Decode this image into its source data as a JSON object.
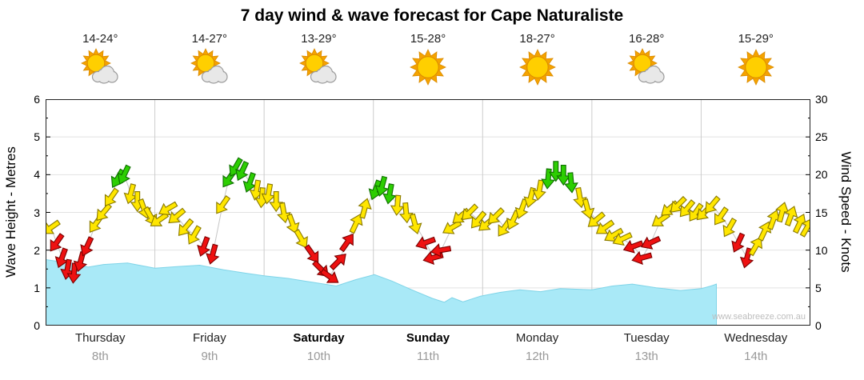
{
  "title": "7 day wind & wave forecast for Cape Naturaliste",
  "watermark": "www.seabreeze.com.au",
  "axes": {
    "left": {
      "label": "Wave Height - Metres",
      "ticks": [
        0,
        1,
        2,
        3,
        4,
        5,
        6
      ]
    },
    "right": {
      "label": "Wind Speed - Knots",
      "ticks": [
        0,
        5,
        10,
        15,
        20,
        25,
        30
      ]
    }
  },
  "days": [
    {
      "name": "Thursday",
      "date": "8th",
      "temp": "14-24°",
      "icon": "partly-cloudy",
      "weekend": false
    },
    {
      "name": "Friday",
      "date": "9th",
      "temp": "14-27°",
      "icon": "partly-cloudy",
      "weekend": false
    },
    {
      "name": "Saturday",
      "date": "10th",
      "temp": "13-29°",
      "icon": "partly-cloudy",
      "weekend": true
    },
    {
      "name": "Sunday",
      "date": "11th",
      "temp": "15-28°",
      "icon": "sunny",
      "weekend": true
    },
    {
      "name": "Monday",
      "date": "12th",
      "temp": "18-27°",
      "icon": "sunny",
      "weekend": false
    },
    {
      "name": "Tuesday",
      "date": "13th",
      "temp": "16-28°",
      "icon": "partly-cloudy",
      "weekend": false
    },
    {
      "name": "Wednesday",
      "date": "14th",
      "temp": "15-29°",
      "icon": "sunny",
      "weekend": false
    }
  ],
  "colors": {
    "wave_fill": "#a9e9f7",
    "wave_edge": "#7fd4e8",
    "trend_line": "#c6c6c6",
    "grid_vertical": "#cccccc",
    "grid_horizontal": "#e2e2e2",
    "plot_border": "#222222",
    "sun_ray": "#f5a300",
    "sun_core": "#ffcf00",
    "sun_edge": "#d98a00",
    "cloud_fill": "#e8e8e8",
    "cloud_edge": "#9a9a9a",
    "arrows": {
      "red": {
        "fill": "#ee1111",
        "stroke": "#7a0000"
      },
      "yellow": {
        "fill": "#ffe600",
        "stroke": "#8a7a00"
      },
      "green": {
        "fill": "#2dce02",
        "stroke": "#0e6e00"
      }
    }
  },
  "chart_data": {
    "type": "area",
    "title": "7 day wind & wave forecast for Cape Naturaliste",
    "x_axis_days": [
      "Thursday 8th",
      "Friday 9th",
      "Saturday 10th",
      "Sunday 11th",
      "Monday 12th",
      "Tuesday 13th",
      "Wednesday 14th"
    ],
    "ylabel_left": "Wave Height - Metres",
    "ylabel_right": "Wind Speed - Knots",
    "ylim_left": [
      0,
      6
    ],
    "ylim_right": [
      0,
      30
    ],
    "grid": true,
    "legend": false,
    "wave_height": {
      "units": "metres",
      "columns": [
        "day_x",
        "metres"
      ],
      "rows": [
        [
          0.0,
          1.75
        ],
        [
          0.24,
          1.65
        ],
        [
          0.39,
          1.55
        ],
        [
          0.53,
          1.62
        ],
        [
          0.75,
          1.66
        ],
        [
          1.0,
          1.52
        ],
        [
          1.19,
          1.56
        ],
        [
          1.41,
          1.6
        ],
        [
          1.63,
          1.48
        ],
        [
          1.85,
          1.38
        ],
        [
          2.0,
          1.32
        ],
        [
          2.22,
          1.25
        ],
        [
          2.44,
          1.15
        ],
        [
          2.66,
          1.05
        ],
        [
          2.84,
          1.22
        ],
        [
          3.01,
          1.35
        ],
        [
          3.17,
          1.18
        ],
        [
          3.35,
          0.95
        ],
        [
          3.54,
          0.72
        ],
        [
          3.65,
          0.62
        ],
        [
          3.72,
          0.74
        ],
        [
          3.82,
          0.63
        ],
        [
          3.98,
          0.78
        ],
        [
          4.16,
          0.88
        ],
        [
          4.34,
          0.95
        ],
        [
          4.53,
          0.9
        ],
        [
          4.71,
          0.98
        ],
        [
          5.0,
          0.95
        ],
        [
          5.19,
          1.05
        ],
        [
          5.37,
          1.1
        ],
        [
          5.59,
          1.0
        ],
        [
          5.81,
          0.93
        ],
        [
          6.0,
          0.98
        ],
        [
          6.08,
          1.04
        ],
        [
          6.14,
          1.1
        ],
        [
          6.14,
          0.0
        ],
        [
          7.0,
          0.0
        ]
      ]
    },
    "wind_arrows": {
      "units": "knots",
      "columns": [
        "day_x",
        "knots",
        "direction_deg",
        "color"
      ],
      "rows": [
        [
          0.05,
          13.0,
          235,
          "yellow"
        ],
        [
          0.1,
          11.0,
          215,
          "red"
        ],
        [
          0.15,
          9.0,
          200,
          "red"
        ],
        [
          0.2,
          7.5,
          190,
          "red"
        ],
        [
          0.26,
          7.0,
          185,
          "red"
        ],
        [
          0.32,
          8.5,
          195,
          "red"
        ],
        [
          0.38,
          10.5,
          205,
          "red"
        ],
        [
          0.46,
          13.5,
          215,
          "yellow"
        ],
        [
          0.53,
          15.0,
          220,
          "yellow"
        ],
        [
          0.6,
          17.0,
          215,
          "yellow"
        ],
        [
          0.66,
          19.5,
          210,
          "green"
        ],
        [
          0.72,
          20.0,
          205,
          "green"
        ],
        [
          0.78,
          17.5,
          195,
          "yellow"
        ],
        [
          0.84,
          16.5,
          180,
          "yellow"
        ],
        [
          0.9,
          15.5,
          160,
          "yellow"
        ],
        [
          0.96,
          14.5,
          150,
          "yellow"
        ],
        [
          1.04,
          14.0,
          235,
          "yellow"
        ],
        [
          1.12,
          15.5,
          240,
          "yellow"
        ],
        [
          1.2,
          14.5,
          230,
          "yellow"
        ],
        [
          1.28,
          13.0,
          220,
          "yellow"
        ],
        [
          1.36,
          12.0,
          210,
          "yellow"
        ],
        [
          1.45,
          10.5,
          200,
          "red"
        ],
        [
          1.53,
          9.5,
          195,
          "red"
        ],
        [
          1.62,
          16.0,
          215,
          "yellow"
        ],
        [
          1.68,
          19.5,
          215,
          "green"
        ],
        [
          1.74,
          21.0,
          210,
          "green"
        ],
        [
          1.8,
          20.5,
          205,
          "green"
        ],
        [
          1.87,
          19.0,
          200,
          "green"
        ],
        [
          1.93,
          18.0,
          190,
          "yellow"
        ],
        [
          1.98,
          17.0,
          185,
          "yellow"
        ],
        [
          2.04,
          17.5,
          190,
          "yellow"
        ],
        [
          2.11,
          16.5,
          180,
          "yellow"
        ],
        [
          2.18,
          15.0,
          170,
          "yellow"
        ],
        [
          2.26,
          13.5,
          160,
          "yellow"
        ],
        [
          2.34,
          11.5,
          150,
          "yellow"
        ],
        [
          2.44,
          9.5,
          145,
          "red"
        ],
        [
          2.52,
          7.5,
          135,
          "red"
        ],
        [
          2.6,
          6.5,
          125,
          "red"
        ],
        [
          2.68,
          8.5,
          45,
          "red"
        ],
        [
          2.76,
          11.0,
          35,
          "red"
        ],
        [
          2.84,
          13.5,
          25,
          "yellow"
        ],
        [
          2.92,
          15.5,
          15,
          "yellow"
        ],
        [
          3.02,
          18.0,
          200,
          "green"
        ],
        [
          3.08,
          18.5,
          195,
          "green"
        ],
        [
          3.15,
          17.5,
          190,
          "green"
        ],
        [
          3.22,
          16.0,
          185,
          "yellow"
        ],
        [
          3.3,
          15.0,
          175,
          "yellow"
        ],
        [
          3.38,
          13.5,
          165,
          "yellow"
        ],
        [
          3.48,
          11.0,
          250,
          "red"
        ],
        [
          3.55,
          9.0,
          255,
          "red"
        ],
        [
          3.62,
          10.0,
          260,
          "red"
        ],
        [
          3.72,
          13.0,
          240,
          "yellow"
        ],
        [
          3.8,
          14.5,
          230,
          "yellow"
        ],
        [
          3.88,
          15.0,
          225,
          "yellow"
        ],
        [
          3.96,
          14.0,
          220,
          "yellow"
        ],
        [
          4.04,
          13.5,
          230,
          "yellow"
        ],
        [
          4.12,
          14.5,
          225,
          "yellow"
        ],
        [
          4.2,
          13.0,
          215,
          "yellow"
        ],
        [
          4.28,
          14.0,
          205,
          "yellow"
        ],
        [
          4.36,
          15.5,
          200,
          "yellow"
        ],
        [
          4.44,
          17.0,
          195,
          "yellow"
        ],
        [
          4.52,
          18.0,
          190,
          "yellow"
        ],
        [
          4.6,
          19.5,
          185,
          "green"
        ],
        [
          4.67,
          20.5,
          180,
          "green"
        ],
        [
          4.74,
          20.0,
          180,
          "green"
        ],
        [
          4.81,
          19.0,
          175,
          "green"
        ],
        [
          4.89,
          17.0,
          170,
          "yellow"
        ],
        [
          4.96,
          15.5,
          165,
          "yellow"
        ],
        [
          5.04,
          14.0,
          230,
          "yellow"
        ],
        [
          5.12,
          13.0,
          235,
          "yellow"
        ],
        [
          5.2,
          12.0,
          240,
          "yellow"
        ],
        [
          5.28,
          11.5,
          245,
          "yellow"
        ],
        [
          5.38,
          10.5,
          250,
          "red"
        ],
        [
          5.46,
          9.0,
          255,
          "red"
        ],
        [
          5.54,
          11.0,
          245,
          "red"
        ],
        [
          5.63,
          14.0,
          235,
          "yellow"
        ],
        [
          5.71,
          15.5,
          230,
          "yellow"
        ],
        [
          5.79,
          16.0,
          225,
          "yellow"
        ],
        [
          5.87,
          15.5,
          220,
          "yellow"
        ],
        [
          5.95,
          15.0,
          215,
          "yellow"
        ],
        [
          6.03,
          15.0,
          225,
          "yellow"
        ],
        [
          6.1,
          16.0,
          220,
          "yellow"
        ],
        [
          6.18,
          14.5,
          215,
          "yellow"
        ],
        [
          6.26,
          13.0,
          210,
          "yellow"
        ],
        [
          6.34,
          11.0,
          205,
          "red"
        ],
        [
          6.42,
          9.0,
          195,
          "red"
        ],
        [
          6.5,
          10.5,
          30,
          "yellow"
        ],
        [
          6.58,
          12.5,
          25,
          "yellow"
        ],
        [
          6.66,
          14.0,
          20,
          "yellow"
        ],
        [
          6.74,
          15.0,
          15,
          "yellow"
        ],
        [
          6.82,
          14.5,
          20,
          "yellow"
        ],
        [
          6.9,
          13.5,
          25,
          "yellow"
        ],
        [
          6.97,
          13.0,
          30,
          "yellow"
        ]
      ]
    }
  }
}
